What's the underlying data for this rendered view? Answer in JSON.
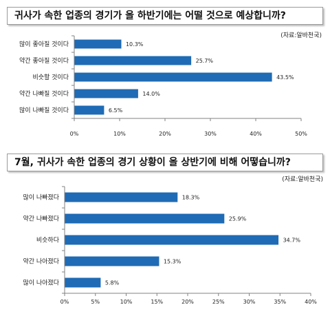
{
  "chart_data": [
    {
      "type": "bar",
      "orientation": "horizontal",
      "title": "귀사가 속한 업종의 경기가 올 하반기에는 어떨 것으로 예상합니까?",
      "source": "(자료:알바천국)",
      "categories": [
        "많이 좋아질 것이다",
        "약간 좋아질 것이다",
        "비슷할 것이다",
        "약간 나빠질 것이다",
        "많이 나빠질 것이다"
      ],
      "values": [
        10.3,
        25.7,
        43.5,
        14.0,
        6.5
      ],
      "value_labels": [
        "10.3%",
        "25.7%",
        "43.5%",
        "14.0%",
        "6.5%"
      ],
      "xlim": [
        0,
        50
      ],
      "xticks": [
        "0%",
        "10%",
        "20%",
        "30%",
        "40%",
        "50%"
      ],
      "bar_color": "#1f6bb5",
      "grid": false
    },
    {
      "type": "bar",
      "orientation": "horizontal",
      "title": "7월, 귀사가 속한 업종의 경기 상황이 올 상반기에 비해 어떻습니까?",
      "source": "(자료:알바천국)",
      "categories": [
        "많이 나빠졌다",
        "약간 나빠졌다",
        "비슷하다",
        "약간 나아졌다",
        "많이 나아졌다"
      ],
      "values": [
        18.3,
        25.9,
        34.7,
        15.3,
        5.8
      ],
      "value_labels": [
        "18.3%",
        "25.9%",
        "34.7%",
        "15.3%",
        "5.8%"
      ],
      "xlim": [
        0,
        40
      ],
      "xticks": [
        "0%",
        "5%",
        "10%",
        "15%",
        "20%",
        "25%",
        "30%",
        "35%",
        "40%"
      ],
      "bar_color": "#1f6bb5",
      "grid": false
    }
  ]
}
